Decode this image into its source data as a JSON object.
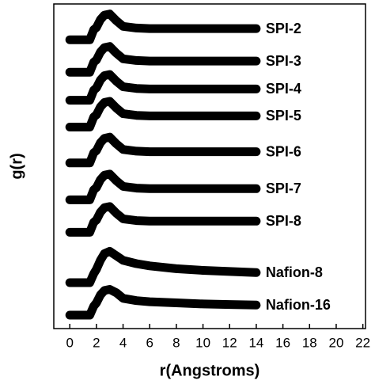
{
  "chart_data": {
    "type": "line",
    "x_label": "r(Angstroms)",
    "y_label": "g(r)",
    "x": [
      0,
      0.5,
      1,
      1.5,
      1.8,
      2,
      2.3,
      2.6,
      3,
      3.5,
      4,
      5,
      6,
      8,
      10,
      12,
      14
    ],
    "xlim": [
      -1.2,
      22.2
    ],
    "xticks": [
      0,
      2,
      4,
      6,
      8,
      10,
      12,
      14,
      16,
      18,
      20,
      22
    ],
    "ylim": [
      0,
      29
    ],
    "series": [
      {
        "name": "SPI-2",
        "color": "#000000",
        "values": [
          25.8,
          25.8,
          25.8,
          25.8,
          26.7,
          26.9,
          27.6,
          28.0,
          28.1,
          27.5,
          27.0,
          26.85,
          26.8,
          26.8,
          26.8,
          26.8,
          26.8
        ]
      },
      {
        "name": "SPI-3",
        "color": "#000000",
        "values": [
          22.9,
          22.9,
          22.9,
          22.9,
          23.8,
          24.0,
          24.7,
          25.1,
          25.2,
          24.6,
          24.1,
          23.95,
          23.9,
          23.9,
          23.9,
          23.9,
          23.9
        ]
      },
      {
        "name": "SPI-4",
        "color": "#000000",
        "values": [
          20.4,
          20.4,
          20.4,
          20.4,
          21.3,
          21.5,
          22.2,
          22.6,
          22.7,
          22.1,
          21.6,
          21.45,
          21.4,
          21.4,
          21.4,
          21.4,
          21.4
        ]
      },
      {
        "name": "SPI-5",
        "color": "#000000",
        "values": [
          18.0,
          18.0,
          18.0,
          18.0,
          18.9,
          19.1,
          19.8,
          20.2,
          20.3,
          19.7,
          19.2,
          19.05,
          19.0,
          19.0,
          19.0,
          19.0,
          19.0
        ]
      },
      {
        "name": "SPI-6",
        "color": "#000000",
        "values": [
          14.8,
          14.8,
          14.8,
          14.8,
          15.7,
          15.9,
          16.6,
          17.0,
          17.1,
          16.5,
          16.0,
          15.85,
          15.8,
          15.8,
          15.8,
          15.8,
          15.8
        ]
      },
      {
        "name": "SPI-7",
        "color": "#000000",
        "values": [
          11.5,
          11.5,
          11.5,
          11.5,
          12.4,
          12.6,
          13.3,
          13.7,
          13.8,
          13.2,
          12.7,
          12.55,
          12.5,
          12.5,
          12.5,
          12.5,
          12.5
        ]
      },
      {
        "name": "SPI-8",
        "color": "#000000",
        "values": [
          8.6,
          8.6,
          8.6,
          8.6,
          9.5,
          9.7,
          10.4,
          10.8,
          10.9,
          10.3,
          9.8,
          9.65,
          9.6,
          9.6,
          9.6,
          9.6,
          9.6
        ]
      },
      {
        "name": "Nafion-8",
        "color": "#000000",
        "values": [
          4.1,
          4.1,
          4.1,
          4.1,
          4.9,
          5.3,
          6.1,
          6.7,
          6.9,
          6.5,
          6.1,
          5.8,
          5.6,
          5.35,
          5.2,
          5.1,
          5.0
        ]
      },
      {
        "name": "Nafion-16",
        "color": "#000000",
        "values": [
          1.2,
          1.2,
          1.2,
          1.2,
          2.0,
          2.3,
          3.0,
          3.4,
          3.5,
          3.2,
          2.7,
          2.5,
          2.4,
          2.3,
          2.2,
          2.15,
          2.1
        ]
      }
    ]
  }
}
